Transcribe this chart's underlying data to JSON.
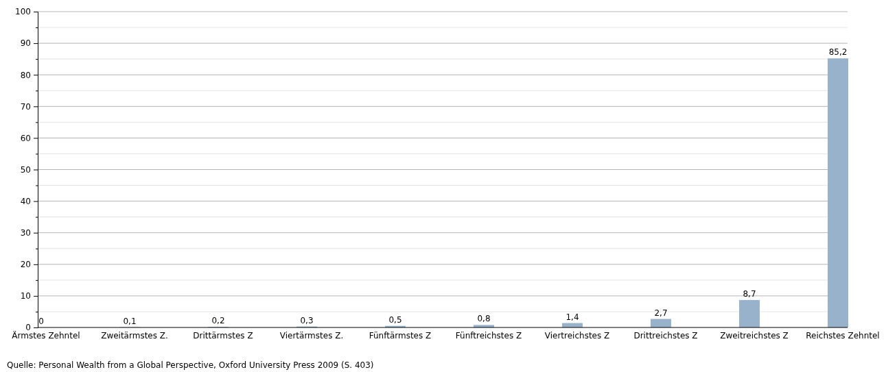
{
  "chart_data": {
    "type": "bar",
    "categories": [
      "Ärmstes Zehntel",
      "Zweitärmstes Z.",
      "Drittärmstes Z",
      "Viertärmstes Z.",
      "Fünftärmstes Z",
      "Fünftreichstes Z",
      "Viertreichstes Z",
      "Drittreichstes Z",
      "Zweitreichstes Z",
      "Reichstes Zehntel"
    ],
    "values": [
      0,
      0.1,
      0.2,
      0.3,
      0.5,
      0.8,
      1.4,
      2.7,
      8.7,
      85.2
    ],
    "value_labels": [
      "0",
      "0,1",
      "0,2",
      "0,3",
      "0,5",
      "0,8",
      "1,4",
      "2,7",
      "8,7",
      "85,2"
    ],
    "color": "#98b2cc",
    "ylim": [
      0,
      100
    ],
    "yticks": [
      0,
      {
        "value": 5,
        "label": null
      },
      10,
      {
        "value": 15,
        "label": null
      },
      20,
      {
        "value": 25,
        "label": null
      },
      30,
      {
        "value": 35,
        "label": null
      },
      40,
      {
        "value": 45,
        "label": null
      },
      50,
      {
        "value": 55,
        "label": null
      },
      60,
      {
        "value": 65,
        "label": null
      },
      70,
      {
        "value": 75,
        "label": null
      },
      80,
      {
        "value": 85,
        "label": null
      },
      90,
      {
        "value": 95,
        "label": null
      },
      100
    ],
    "grid": "y",
    "annotations": [
      "Quelle: Personal Wealth from a Global Perspective, Oxford University Press 2009 (S. 403)"
    ]
  }
}
